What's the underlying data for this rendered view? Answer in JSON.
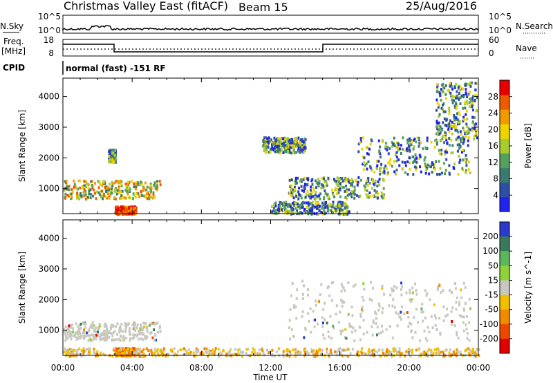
{
  "header": {
    "radar": "Christmas Valley East (fitACF)",
    "beam": "Beam 15",
    "date": "25/Aug/2016"
  },
  "panels": {
    "nsky_label": "N.Sky",
    "nsearch_label": "N.Search",
    "nsky_ticks": [
      "10^5",
      "10^0"
    ],
    "nsearch_ticks": [
      "10^5",
      "10^0"
    ],
    "freq_label_1": "Freq.",
    "freq_label_2": "[MHz]",
    "freq_ticks": [
      "18",
      "8"
    ],
    "nave_label": "Nave",
    "nave_ticks": [
      "60",
      "0"
    ],
    "cpid_label": "CPID",
    "cpid_text": "normal (fast) -151 RF"
  },
  "chart_data": [
    {
      "type": "heatmap",
      "quantity": "Power",
      "ylabel": "Slant Range [km]",
      "xlabel": "Time UT",
      "xticks": [
        "00:00",
        "04:00",
        "08:00",
        "12:00",
        "16:00",
        "20:00",
        "00:00"
      ],
      "yticks": [
        "1000",
        "2000",
        "3000",
        "4000"
      ],
      "colorbar_label": "Power [dB]",
      "colorbar_ticks": [
        "4",
        "8",
        "12",
        "16",
        "20",
        "24",
        "28"
      ],
      "colorbar_colors": [
        "#2222ee",
        "#2e4fa6",
        "#3b7a6e",
        "#55a05a",
        "#a8cc2e",
        "#f0d400",
        "#f09a00",
        "#ee5a00",
        "#e80000"
      ],
      "xlim_hours": [
        0,
        24
      ],
      "ylim_km": [
        180,
        4600
      ],
      "features": [
        {
          "t": [
            0.0,
            5.6
          ],
          "r": [
            700,
            1300
          ],
          "level": "high"
        },
        {
          "t": [
            3.0,
            4.2
          ],
          "r": [
            200,
            450
          ],
          "level": "max"
        },
        {
          "t": [
            2.6,
            3.0
          ],
          "r": [
            1900,
            2300
          ],
          "level": "mid"
        },
        {
          "t": [
            12.0,
            16.5
          ],
          "r": [
            200,
            600
          ],
          "level": "mid"
        },
        {
          "t": [
            13.0,
            18.5
          ],
          "r": [
            700,
            1400
          ],
          "level": "mid"
        },
        {
          "t": [
            11.5,
            14.0
          ],
          "r": [
            2200,
            2700
          ],
          "level": "mid"
        },
        {
          "t": [
            17.0,
            23.5
          ],
          "r": [
            1500,
            2700
          ],
          "level": "mid"
        },
        {
          "t": [
            21.5,
            23.9
          ],
          "r": [
            2600,
            4500
          ],
          "level": "mid"
        }
      ]
    },
    {
      "type": "heatmap",
      "quantity": "Velocity",
      "ylabel": "Slant Range [km]",
      "xlabel": "Time UT",
      "xticks": [
        "00:00",
        "04:00",
        "08:00",
        "12:00",
        "16:00",
        "20:00",
        "00:00"
      ],
      "yticks": [
        "1000",
        "2000",
        "3000",
        "4000"
      ],
      "colorbar_label": "Velocity [m s^-1]",
      "colorbar_ticks": [
        "200",
        "100",
        "50",
        "15",
        "-15",
        "-50",
        "-100",
        "-200"
      ],
      "colorbar_colors": [
        "#2a3acc",
        "#3a7a5a",
        "#5ab85a",
        "#8ed23a",
        "#c8c8c0",
        "#f0c000",
        "#f08a00",
        "#ee4800",
        "#e00000"
      ],
      "xlim_hours": [
        0,
        24
      ],
      "ylim_km": [
        180,
        4600
      ],
      "features": [
        {
          "t": [
            0.0,
            5.6
          ],
          "r": [
            700,
            1300
          ],
          "level": "ground"
        },
        {
          "t": [
            3.0,
            4.2
          ],
          "r": [
            200,
            450
          ],
          "level": "neg"
        },
        {
          "t": [
            0.0,
            24.0
          ],
          "r": [
            180,
            450
          ],
          "level": "neg_scatter"
        },
        {
          "t": [
            13.0,
            23.5
          ],
          "r": [
            700,
            2700
          ],
          "level": "ground"
        }
      ]
    }
  ]
}
